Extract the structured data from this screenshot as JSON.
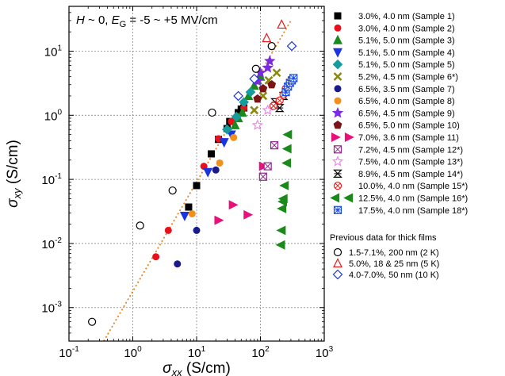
{
  "chart_data": {
    "type": "scatter",
    "title": "",
    "annotation": {
      "h": "H",
      "rest": " ~ 0, ",
      "e": "E",
      "sub": "G",
      "range": " = -5 ~ +5 MV/cm"
    },
    "xlabel": {
      "sym": "σ",
      "sub": "xx",
      "unit": " (S/cm)"
    },
    "ylabel": {
      "sym": "σ",
      "sub": "xy",
      "unit": " (S/cm)"
    },
    "xscale": "log",
    "yscale": "log",
    "xlim": [
      0.1,
      1000
    ],
    "ylim": [
      0.0003,
      50
    ],
    "grid": true,
    "legend_position": "right",
    "xticks": [
      {
        "value": 0.1,
        "base": "10",
        "exp": "-1"
      },
      {
        "value": 1,
        "base": "10",
        "exp": "0"
      },
      {
        "value": 10,
        "base": "10",
        "exp": "1"
      },
      {
        "value": 100,
        "base": "10",
        "exp": "2"
      },
      {
        "value": 1000,
        "base": "10",
        "exp": "3"
      }
    ],
    "yticks": [
      {
        "value": 0.001,
        "base": "10",
        "exp": "-3"
      },
      {
        "value": 0.01,
        "base": "10",
        "exp": "-2"
      },
      {
        "value": 0.1,
        "base": "10",
        "exp": "-1"
      },
      {
        "value": 1,
        "base": "10",
        "exp": "0"
      },
      {
        "value": 10,
        "base": "10",
        "exp": "1"
      }
    ],
    "fit_line": {
      "color": "#e8821e",
      "style": "dotted",
      "points": [
        [
          0.35,
          0.0003
        ],
        [
          300,
          30
        ]
      ]
    },
    "legend_header": "Previous data for thick films",
    "series": [
      {
        "name": "3.0%, 4.0 nm (Sample 1)",
        "marker": "square",
        "color": "#000000",
        "filled": true,
        "x": [
          7.5,
          10,
          17,
          22,
          30,
          33,
          45,
          50,
          55
        ],
        "y": [
          0.037,
          0.08,
          0.25,
          0.42,
          0.62,
          0.8,
          1.1,
          1.25,
          1.3
        ]
      },
      {
        "name": "3.0%, 4.0 nm (Sample 2)",
        "marker": "circle",
        "color": "#e8101a",
        "filled": true,
        "x": [
          2.3,
          3.6,
          13,
          22,
          35,
          55
        ],
        "y": [
          0.0062,
          0.016,
          0.16,
          0.43,
          0.8,
          1.3
        ]
      },
      {
        "name": "5.1%, 5.0 nm (Sample 3)",
        "marker": "triangle-up",
        "color": "#1a8a1a",
        "filled": true,
        "x": [
          40,
          45,
          52,
          65,
          80,
          90,
          100
        ],
        "y": [
          0.7,
          0.9,
          1.1,
          2.0,
          2.9,
          3.5,
          4.0
        ]
      },
      {
        "name": "5.1%, 5.0 nm (Sample 4)",
        "marker": "triangle-down",
        "color": "#1a35e0",
        "filled": true,
        "x": [
          6.5,
          15,
          27,
          35
        ],
        "y": [
          0.027,
          0.13,
          0.38,
          0.5
        ]
      },
      {
        "name": "5.1%, 5.0 nm (Sample 5)",
        "marker": "diamond",
        "color": "#159c9c",
        "filled": true,
        "x": [
          30,
          42,
          55,
          70
        ],
        "y": [
          0.6,
          0.95,
          1.6,
          2.3
        ]
      },
      {
        "name": "5.2%, 4.5 nm (Sample 6*)",
        "marker": "x",
        "color": "#8a8a10",
        "filled": true,
        "x": [
          80,
          110,
          135,
          180
        ],
        "y": [
          1.2,
          2.0,
          3.5,
          4.6
        ]
      },
      {
        "name": "6.5%, 3.5 nm (Sample 7)",
        "marker": "circle",
        "color": "#1a1a8a",
        "filled": true,
        "x": [
          5.0,
          10,
          20
        ],
        "y": [
          0.0048,
          0.016,
          0.14
        ]
      },
      {
        "name": "6.5%, 4.0 nm (Sample 8)",
        "marker": "circle",
        "color": "#f3901a",
        "filled": true,
        "x": [
          8.5,
          23,
          38
        ],
        "y": [
          0.029,
          0.18,
          0.45
        ]
      },
      {
        "name": "6.5%, 4.5 nm (Sample 9)",
        "marker": "star",
        "color": "#7a2ae0",
        "filled": true,
        "x": [
          90,
          100,
          130,
          140
        ],
        "y": [
          3.4,
          4.6,
          5.5,
          7.0
        ]
      },
      {
        "name": "6.5%, 5.0 nm (Sample 10)",
        "marker": "pentagon",
        "color": "#7a1515",
        "filled": true,
        "x": [
          90,
          110,
          150
        ],
        "y": [
          1.8,
          2.6,
          3.0
        ]
      },
      {
        "name": "7.0%, 3.6 nm (Sample 11)",
        "marker": "triangle-right",
        "color": "#e8107a",
        "filled": true,
        "x": [
          22,
          37,
          63,
          110
        ],
        "y": [
          0.023,
          0.04,
          0.028,
          0.16
        ]
      },
      {
        "name": "7.2%, 4.5 nm (Sample 12*)",
        "marker": "square-x",
        "color": "#8a2a8a",
        "filled": true,
        "x": [
          110,
          130,
          165
        ],
        "y": [
          0.11,
          0.16,
          0.34
        ]
      },
      {
        "name": "7.5%, 4.0 nm (Sample 13*)",
        "marker": "star-open",
        "color": "#e88ae8",
        "filled": false,
        "x": [
          90,
          130,
          170
        ],
        "y": [
          0.7,
          1.2,
          1.4
        ]
      },
      {
        "name": "8.9%, 4.5 nm (Sample 14*)",
        "marker": "hourglass",
        "color": "#000000",
        "filled": false,
        "x": [
          170,
          200,
          230
        ],
        "y": [
          1.6,
          1.3,
          2.0
        ]
      },
      {
        "name": "10.0%, 4.0 nm (Sample 15*)",
        "marker": "circle-x",
        "color": "#e81a1a",
        "filled": false,
        "x": [
          160,
          200,
          230,
          250
        ],
        "y": [
          1.4,
          1.7,
          2.1,
          2.6
        ]
      },
      {
        "name": "12.5%, 4.0 nm (Sample 16*)",
        "marker": "triangle-left",
        "color": "#1a8a1a",
        "filled": true,
        "x": [
          210,
          215,
          220,
          225,
          230,
          240,
          260,
          265,
          270
        ],
        "y": [
          0.0095,
          0.016,
          0.035,
          0.045,
          0.05,
          0.08,
          0.18,
          0.3,
          0.5
        ]
      },
      {
        "name": "17.5%, 4.0 nm (Sample 18*)",
        "marker": "square-grid",
        "color": "#1a4ae0",
        "filled": false,
        "x": [
          250,
          270,
          290,
          310,
          330
        ],
        "y": [
          2.3,
          2.8,
          3.2,
          3.5,
          3.8
        ]
      },
      {
        "name": "1.5-7.1%, 200 nm (2 K)",
        "marker": "circle-open",
        "color": "#000000",
        "filled": false,
        "previous": true,
        "x": [
          0.23,
          1.3,
          4.2,
          17.5,
          85,
          150
        ],
        "y": [
          0.0006,
          0.019,
          0.067,
          1.1,
          5.3,
          12
        ]
      },
      {
        "name": "5.0%, 18 & 25 nm (5 K)",
        "marker": "triangle-up-open",
        "color": "#e81a1a",
        "filled": false,
        "previous": true,
        "x": [
          125,
          215
        ],
        "y": [
          16,
          26
        ]
      },
      {
        "name": "4.0-7.0%, 50 nm (10 K)",
        "marker": "diamond-open",
        "color": "#1a35e0",
        "filled": false,
        "previous": true,
        "x": [
          45,
          80,
          310
        ],
        "y": [
          2.0,
          3.7,
          12
        ]
      }
    ]
  }
}
